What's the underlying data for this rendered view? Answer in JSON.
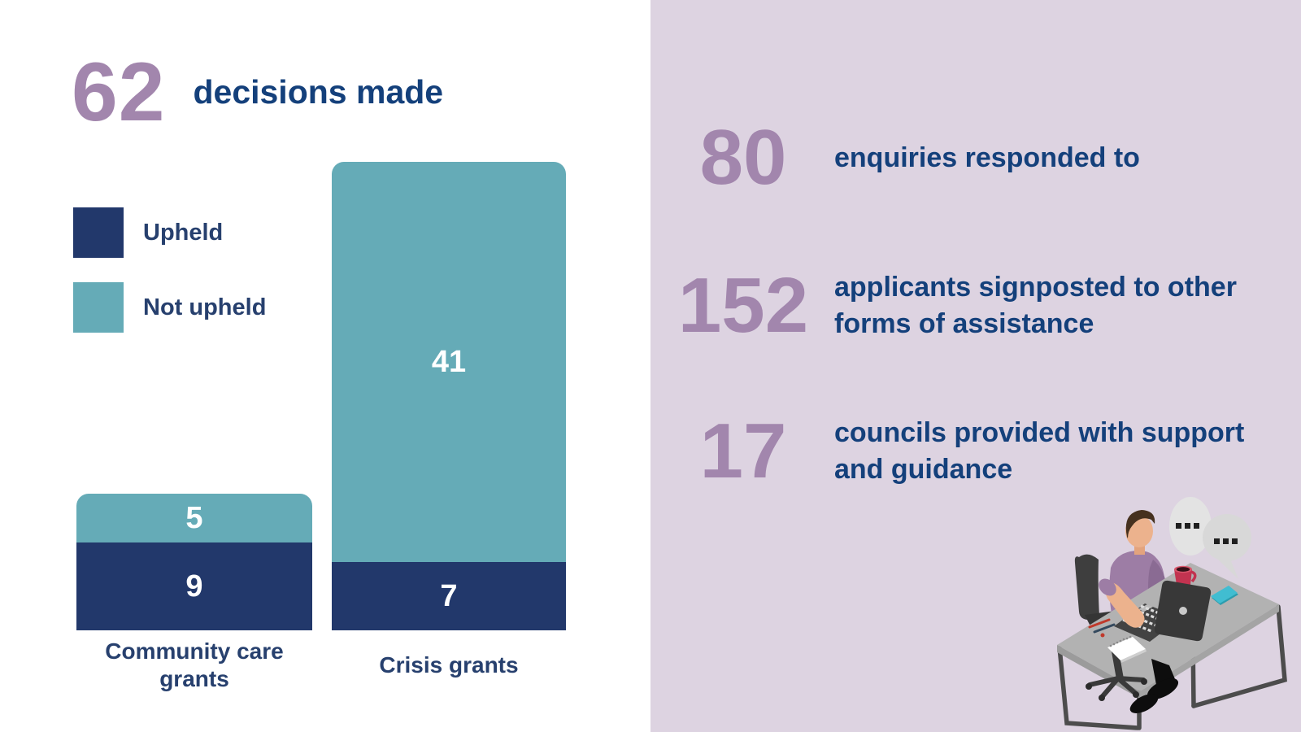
{
  "colors": {
    "purple": "#a286ad",
    "navy_text": "#14407b",
    "label_navy": "#27406e",
    "panel_background": "#ddd3e1",
    "bar_navy": "#22386b",
    "bar_teal": "#65abb7"
  },
  "left_panel": {
    "headline": {
      "number": "62",
      "label": "decisions made"
    },
    "chart_data": {
      "type": "bar",
      "stacked": true,
      "orientation": "vertical",
      "categories": [
        "Community care grants",
        "Crisis grants"
      ],
      "series": [
        {
          "name": "Upheld",
          "color": "#22386b",
          "values": [
            9,
            7
          ]
        },
        {
          "name": "Not upheld",
          "color": "#65abb7",
          "values": [
            5,
            41
          ]
        }
      ],
      "totals": [
        14,
        48
      ],
      "title": "62 decisions made",
      "value_labels": "white numbers centered on each segment",
      "axes": "none",
      "grid": "off",
      "legend_position": "upper left"
    }
  },
  "right_panel": {
    "stats": [
      {
        "number": "80",
        "lines": [
          "enquiries responded to"
        ]
      },
      {
        "number": "152",
        "lines": [
          "applicants signposted to other",
          "forms of assistance"
        ]
      },
      {
        "number": "17",
        "lines": [
          "councils provided with support",
          "and guidance"
        ]
      }
    ],
    "illustration": "person working at a desk with laptop, mug, phone, notepad and chat bubbles"
  }
}
